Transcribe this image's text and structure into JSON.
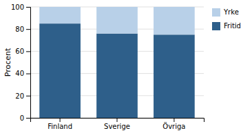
{
  "chart_data": {
    "type": "bar",
    "stacked": true,
    "categories": [
      "Finland",
      "Sverige",
      "Övriga"
    ],
    "series": [
      {
        "name": "Fritid",
        "color": "#2E5F8A",
        "values": [
          85,
          76,
          75
        ]
      },
      {
        "name": "Yrke",
        "color": "#B8D0E8",
        "values": [
          15,
          24,
          25
        ]
      }
    ],
    "ylabel": "Procent",
    "ylim": [
      0,
      100
    ],
    "yticks": [
      0,
      20,
      40,
      60,
      80,
      100
    ],
    "grid": true,
    "legend": "right"
  }
}
